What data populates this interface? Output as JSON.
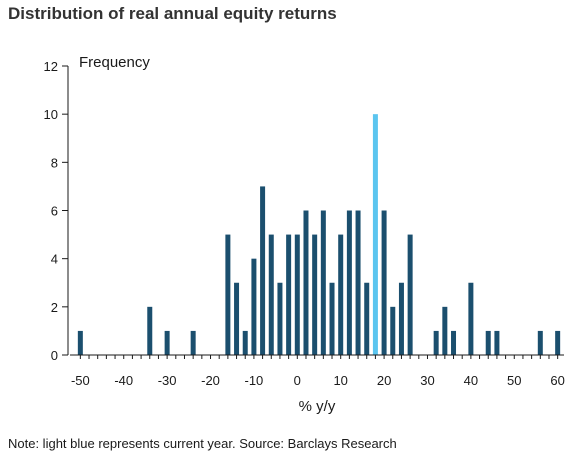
{
  "title": "Distribution of real annual equity returns",
  "note": "Note: light blue represents current year. Source: Barclays Research",
  "colors": {
    "bar": "#1b4f6e",
    "highlight": "#5bc5ef",
    "axis": "#1a1a1a"
  },
  "chart_data": {
    "type": "bar",
    "title": "Distribution of real annual equity returns",
    "xlabel": "% y/y",
    "ylabel": "Frequency",
    "xlim": [
      -51,
      61
    ],
    "ylim": [
      0,
      12
    ],
    "xticks": [
      -50,
      -40,
      -30,
      -20,
      -10,
      0,
      10,
      20,
      30,
      40,
      50,
      60
    ],
    "yticks": [
      0,
      2,
      4,
      6,
      8,
      10,
      12
    ],
    "highlight_x": 18,
    "bins": [
      {
        "x": -50,
        "value": 1
      },
      {
        "x": -34,
        "value": 2
      },
      {
        "x": -30,
        "value": 1
      },
      {
        "x": -24,
        "value": 1
      },
      {
        "x": -16,
        "value": 5
      },
      {
        "x": -14,
        "value": 3
      },
      {
        "x": -12,
        "value": 1
      },
      {
        "x": -10,
        "value": 4
      },
      {
        "x": -8,
        "value": 7
      },
      {
        "x": -6,
        "value": 5
      },
      {
        "x": -4,
        "value": 3
      },
      {
        "x": -2,
        "value": 5
      },
      {
        "x": 0,
        "value": 5
      },
      {
        "x": 2,
        "value": 6
      },
      {
        "x": 4,
        "value": 5
      },
      {
        "x": 6,
        "value": 6
      },
      {
        "x": 8,
        "value": 3
      },
      {
        "x": 10,
        "value": 5
      },
      {
        "x": 12,
        "value": 6
      },
      {
        "x": 14,
        "value": 6
      },
      {
        "x": 16,
        "value": 3
      },
      {
        "x": 18,
        "value": 10
      },
      {
        "x": 20,
        "value": 6
      },
      {
        "x": 22,
        "value": 2
      },
      {
        "x": 24,
        "value": 3
      },
      {
        "x": 26,
        "value": 5
      },
      {
        "x": 32,
        "value": 1
      },
      {
        "x": 34,
        "value": 2
      },
      {
        "x": 36,
        "value": 1
      },
      {
        "x": 40,
        "value": 3
      },
      {
        "x": 44,
        "value": 1
      },
      {
        "x": 46,
        "value": 1
      },
      {
        "x": 56,
        "value": 1
      },
      {
        "x": 60,
        "value": 1
      }
    ]
  }
}
